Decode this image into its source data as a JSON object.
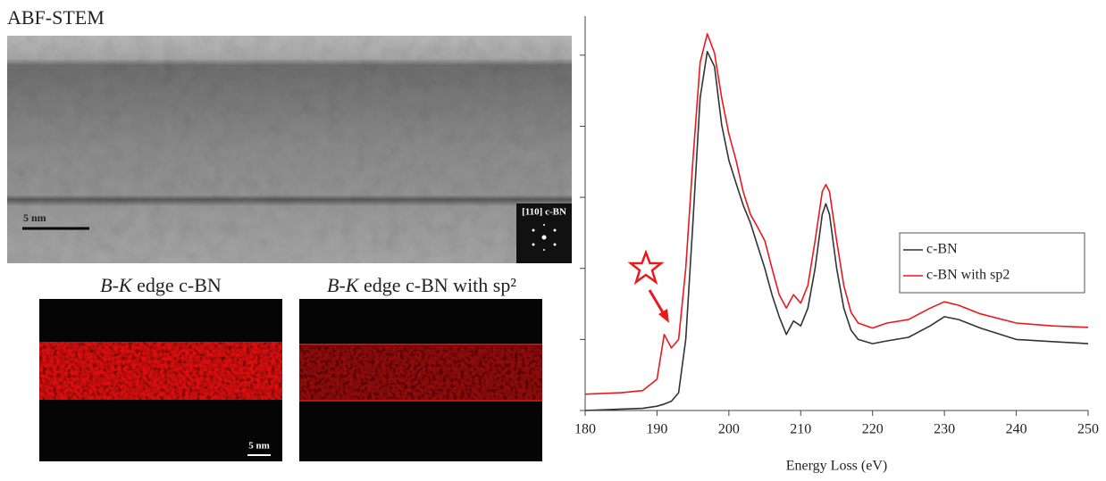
{
  "figure": {
    "stem_title": "ABF-STEM",
    "stem_scale_bar": "5 nm",
    "inset_label": "[110] c-BN",
    "panels": [
      {
        "element": "B-K",
        "rest": "edge c-BN"
      },
      {
        "element": "B-K",
        "rest": "edge c-BN with sp²"
      }
    ],
    "map_scale_bar": "5 nm"
  },
  "chart_data": {
    "type": "line",
    "x_label": "Energy Loss (eV)",
    "x": [
      180,
      185,
      188,
      190,
      191,
      192,
      193,
      194,
      195,
      196,
      197,
      198,
      199,
      200,
      201,
      202,
      203,
      204,
      205,
      206,
      207,
      208,
      209,
      210,
      211,
      212,
      213,
      213.5,
      214,
      215,
      216,
      217,
      218,
      220,
      222,
      225,
      228,
      230,
      232,
      235,
      240,
      245,
      250
    ],
    "series": [
      {
        "name": "c-BN",
        "color": "#333333",
        "values": [
          0,
          0.02,
          0.03,
          0.06,
          0.09,
          0.13,
          0.25,
          1.0,
          2.64,
          4.4,
          5.05,
          4.84,
          4.02,
          3.52,
          3.2,
          2.89,
          2.64,
          2.32,
          2.0,
          1.63,
          1.32,
          1.07,
          1.26,
          1.19,
          1.44,
          2.0,
          2.76,
          2.91,
          2.76,
          2.0,
          1.44,
          1.13,
          1.0,
          0.94,
          0.98,
          1.03,
          1.19,
          1.32,
          1.28,
          1.16,
          1.0,
          0.97,
          0.94
        ]
      },
      {
        "name": "c-BN with sp2",
        "color": "#e8191f",
        "values": [
          0.23,
          0.25,
          0.28,
          0.44,
          1.07,
          0.88,
          1.0,
          2.0,
          3.52,
          4.9,
          5.3,
          5.03,
          4.4,
          3.89,
          3.52,
          3.08,
          2.76,
          2.58,
          2.39,
          2.0,
          1.63,
          1.44,
          1.63,
          1.51,
          1.76,
          2.39,
          3.08,
          3.18,
          3.08,
          2.39,
          1.76,
          1.38,
          1.23,
          1.16,
          1.23,
          1.28,
          1.44,
          1.53,
          1.48,
          1.36,
          1.23,
          1.19,
          1.17
        ]
      }
    ],
    "xlim": [
      180,
      250
    ],
    "xticks": [
      180,
      190,
      200,
      210,
      220,
      230,
      240,
      250
    ],
    "ylim": [
      0,
      5.5
    ],
    "yticks": [
      0,
      1,
      2,
      3,
      4,
      5
    ],
    "legend": "center right",
    "grid": false
  }
}
